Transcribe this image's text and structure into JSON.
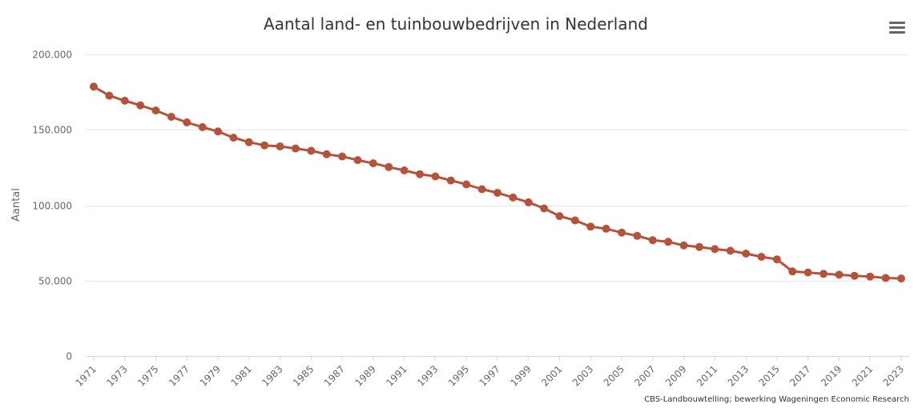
{
  "chart_data": {
    "type": "line",
    "title": "Aantal land- en tuinbouwbedrijven in Nederland",
    "ylabel": "Aantal",
    "xlabel": "",
    "credits": "CBS-Landbouwtelling; bewerking Wageningen Economic Research",
    "ylim": [
      0,
      200000
    ],
    "y_ticks": [
      "0",
      "50.000",
      "100.000",
      "150.000",
      "200.000"
    ],
    "x_tick_labels": [
      "1971",
      "1973",
      "1975",
      "1977",
      "1979",
      "1981",
      "1983",
      "1985",
      "1987",
      "1989",
      "1991",
      "1993",
      "1995",
      "1997",
      "1999",
      "2001",
      "2003",
      "2005",
      "2007",
      "2009",
      "2011",
      "2013",
      "2015",
      "2017",
      "2019",
      "2021",
      "2023"
    ],
    "grid": true,
    "legend": "none",
    "color": "#b5533a",
    "x": [
      1971,
      1972,
      1973,
      1974,
      1975,
      1976,
      1977,
      1978,
      1979,
      1980,
      1981,
      1982,
      1983,
      1984,
      1985,
      1986,
      1987,
      1988,
      1989,
      1990,
      1991,
      1992,
      1993,
      1994,
      1995,
      1996,
      1997,
      1998,
      1999,
      2000,
      2001,
      2002,
      2003,
      2004,
      2005,
      2006,
      2007,
      2008,
      2009,
      2010,
      2011,
      2012,
      2013,
      2014,
      2015,
      2016,
      2017,
      2018,
      2019,
      2020,
      2021,
      2022,
      2023
    ],
    "values": [
      178600,
      172600,
      169300,
      166200,
      162800,
      158600,
      154900,
      151800,
      148900,
      144800,
      141800,
      139700,
      139000,
      137600,
      136100,
      133800,
      132300,
      129900,
      127800,
      125300,
      123100,
      120600,
      119100,
      116400,
      113800,
      110600,
      108200,
      105100,
      101900,
      97900,
      92800,
      89900,
      85800,
      84400,
      81800,
      79700,
      76800,
      75700,
      73300,
      72300,
      70900,
      69800,
      67900,
      65800,
      64100,
      56100,
      55400,
      54500,
      53900,
      53200,
      52700,
      51700,
      51400
    ],
    "menu_icon": "hamburger-menu-icon"
  }
}
